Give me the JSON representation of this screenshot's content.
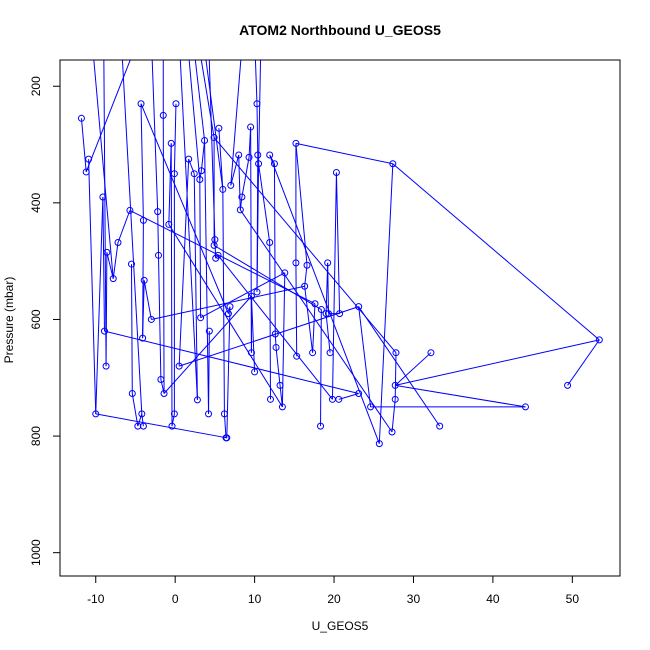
{
  "chart_data": {
    "type": "line",
    "title": "ATOM2 Northbound U_GEOS5",
    "xlabel": "U_GEOS5",
    "ylabel": "Pressure (mbar)",
    "xlim": [
      -14.5,
      56
    ],
    "ylim": [
      1040,
      155
    ],
    "x_ticks": [
      -10,
      0,
      10,
      20,
      30,
      40,
      50
    ],
    "y_ticks": [
      200,
      400,
      600,
      800,
      1000
    ],
    "grid": false,
    "color": "#0000ff",
    "points": [
      {
        "x": 53.4,
        "p": 635
      },
      {
        "x": 49.4,
        "p": 713
      },
      {
        "x": 27.7,
        "p": 713
      },
      {
        "x": 44.1,
        "p": 750
      },
      {
        "x": 27.4,
        "p": 333
      },
      {
        "x": 25.7,
        "p": 813
      },
      {
        "x": 33.3,
        "p": 783
      },
      {
        "x": 32.2,
        "p": 657
      },
      {
        "x": 23.1,
        "p": 578
      },
      {
        "x": 27.8,
        "p": 657
      },
      {
        "x": 27.7,
        "p": 737
      },
      {
        "x": 27.3,
        "p": 793
      },
      {
        "x": 24.6,
        "p": 750
      },
      {
        "x": 23.1,
        "p": 727
      },
      {
        "x": 20.6,
        "p": 737
      },
      {
        "x": 19.8,
        "p": 737
      },
      {
        "x": 20.3,
        "p": 348
      },
      {
        "x": 20.7,
        "p": 590
      },
      {
        "x": 19.3,
        "p": 590
      },
      {
        "x": 19.2,
        "p": 503
      },
      {
        "x": 19.0,
        "p": 590
      },
      {
        "x": 19.5,
        "p": 657
      },
      {
        "x": 18.4,
        "p": 583
      },
      {
        "x": 18.3,
        "p": 783
      },
      {
        "x": 17.6,
        "p": 573
      },
      {
        "x": 17.3,
        "p": 657
      },
      {
        "x": 16.3,
        "p": 543
      },
      {
        "x": 16.6,
        "p": 507
      },
      {
        "x": 15.2,
        "p": 298
      },
      {
        "x": 15.2,
        "p": 503
      },
      {
        "x": 15.3,
        "p": 663
      },
      {
        "x": 13.8,
        "p": 520
      },
      {
        "x": 13.5,
        "p": 750
      },
      {
        "x": 13.2,
        "p": 713
      },
      {
        "x": 12.7,
        "p": 648
      },
      {
        "x": 12.6,
        "p": 625
      },
      {
        "x": 12.5,
        "p": 333
      },
      {
        "x": 11.9,
        "p": 318
      },
      {
        "x": 12.0,
        "p": 737
      },
      {
        "x": 11.9,
        "p": 468
      },
      {
        "x": 10.5,
        "p": 333
      },
      {
        "x": 10.3,
        "p": 553
      },
      {
        "x": 10.4,
        "p": 318
      },
      {
        "x": 10.3,
        "p": 230
      },
      {
        "x": 10.0,
        "p": 690
      },
      {
        "x": 9.6,
        "p": 560
      },
      {
        "x": 9.6,
        "p": 657
      },
      {
        "x": 9.5,
        "p": 270
      },
      {
        "x": 9.3,
        "p": 322
      },
      {
        "x": 8.4,
        "p": 390
      },
      {
        "x": 8.2,
        "p": 412
      },
      {
        "x": 8.0,
        "p": 318
      },
      {
        "x": 7.0,
        "p": 370
      },
      {
        "x": 6.7,
        "p": 590
      },
      {
        "x": 6.9,
        "p": 578
      },
      {
        "x": 6.5,
        "p": 803
      },
      {
        "x": 6.4,
        "p": 803
      },
      {
        "x": 6.2,
        "p": 762
      },
      {
        "x": 6.0,
        "p": 377
      },
      {
        "x": 5.5,
        "p": 272
      },
      {
        "x": 5.4,
        "p": 490
      },
      {
        "x": 5.1,
        "p": 495
      },
      {
        "x": 5.0,
        "p": 463
      },
      {
        "x": 4.9,
        "p": 473
      },
      {
        "x": 4.9,
        "p": 288
      },
      {
        "x": 4.3,
        "p": 620
      },
      {
        "x": 4.2,
        "p": 762
      },
      {
        "x": 3.7,
        "p": 293
      },
      {
        "x": 3.3,
        "p": 345
      },
      {
        "x": 3.1,
        "p": 360
      },
      {
        "x": 3.2,
        "p": 597
      },
      {
        "x": 2.8,
        "p": 738
      },
      {
        "x": 2.4,
        "p": 350
      },
      {
        "x": 1.7,
        "p": 325
      },
      {
        "x": 0.5,
        "p": 680
      },
      {
        "x": 0.1,
        "p": 230
      },
      {
        "x": -0.1,
        "p": 350
      },
      {
        "x": -0.1,
        "p": 762
      },
      {
        "x": -0.4,
        "p": 783
      },
      {
        "x": -0.5,
        "p": 298
      },
      {
        "x": -0.8,
        "p": 437
      },
      {
        "x": -1.5,
        "p": 250
      },
      {
        "x": -1.4,
        "p": 727
      },
      {
        "x": -1.8,
        "p": 703
      },
      {
        "x": -2.1,
        "p": 490
      },
      {
        "x": -2.2,
        "p": 415
      },
      {
        "x": -3.0,
        "p": 600
      },
      {
        "x": -3.9,
        "p": 533
      },
      {
        "x": -4.1,
        "p": 632
      },
      {
        "x": -4.0,
        "p": 430
      },
      {
        "x": -4.3,
        "p": 230
      },
      {
        "x": -4.0,
        "p": 783
      },
      {
        "x": -4.2,
        "p": 762
      },
      {
        "x": -4.7,
        "p": 783
      },
      {
        "x": -5.4,
        "p": 727
      },
      {
        "x": -5.5,
        "p": 505
      },
      {
        "x": -5.7,
        "p": 413
      },
      {
        "x": -7.2,
        "p": 468
      },
      {
        "x": -7.8,
        "p": 530
      },
      {
        "x": -8.6,
        "p": 485
      },
      {
        "x": -8.7,
        "p": 680
      },
      {
        "x": -8.9,
        "p": 620
      },
      {
        "x": -9.1,
        "p": 390
      },
      {
        "x": -10.0,
        "p": 762
      },
      {
        "x": -10.9,
        "p": 325
      },
      {
        "x": -11.2,
        "p": 347
      },
      {
        "x": -11.8,
        "p": 255
      }
    ],
    "segments": [
      [
        1,
        0
      ],
      [
        0,
        2
      ],
      [
        4,
        0
      ],
      [
        3,
        2
      ],
      [
        4,
        5
      ],
      [
        11,
        10
      ],
      [
        12,
        3
      ],
      [
        8,
        12
      ],
      [
        8,
        6
      ],
      [
        7,
        2
      ],
      [
        10,
        9
      ],
      [
        13,
        14
      ],
      [
        15,
        16
      ],
      [
        16,
        17
      ],
      [
        17,
        18
      ],
      [
        18,
        19
      ],
      [
        19,
        20
      ],
      [
        20,
        21
      ],
      [
        22,
        23
      ],
      [
        24,
        25
      ],
      [
        25,
        26
      ],
      [
        26,
        27
      ],
      [
        27,
        28
      ],
      [
        28,
        29
      ],
      [
        29,
        30
      ],
      [
        31,
        32
      ],
      [
        32,
        33
      ],
      [
        33,
        34
      ],
      [
        34,
        35
      ],
      [
        35,
        36
      ],
      [
        36,
        37
      ],
      [
        38,
        39
      ],
      [
        39,
        40
      ],
      [
        40,
        41
      ],
      [
        41,
        42
      ],
      [
        42,
        43
      ],
      [
        44,
        45
      ],
      [
        45,
        46
      ],
      [
        46,
        47
      ],
      [
        47,
        48
      ],
      [
        48,
        49
      ],
      [
        49,
        50
      ],
      [
        50,
        51
      ],
      [
        51,
        52
      ],
      [
        53,
        54
      ],
      [
        54,
        55
      ],
      [
        55,
        56
      ],
      [
        56,
        57
      ],
      [
        57,
        58
      ],
      [
        58,
        59
      ],
      [
        60,
        61
      ],
      [
        61,
        62
      ],
      [
        62,
        63
      ],
      [
        63,
        64
      ],
      [
        65,
        66
      ],
      [
        66,
        67
      ],
      [
        67,
        68
      ],
      [
        68,
        69
      ],
      [
        69,
        70
      ],
      [
        71,
        72
      ],
      [
        72,
        73
      ],
      [
        73,
        74
      ],
      [
        75,
        76
      ],
      [
        76,
        77
      ],
      [
        77,
        78
      ],
      [
        78,
        79
      ],
      [
        79,
        80
      ],
      [
        81,
        82
      ],
      [
        82,
        83
      ],
      [
        83,
        84
      ],
      [
        84,
        85
      ],
      [
        86,
        87
      ],
      [
        87,
        88
      ],
      [
        88,
        89
      ],
      [
        89,
        90
      ],
      [
        91,
        92
      ],
      [
        92,
        93
      ],
      [
        93,
        94
      ],
      [
        94,
        95
      ],
      [
        96,
        97
      ],
      [
        97,
        98
      ],
      [
        98,
        99
      ],
      [
        99,
        100
      ],
      [
        101,
        102
      ],
      [
        102,
        103
      ],
      [
        103,
        104
      ],
      [
        105,
        106
      ],
      [
        106,
        107
      ],
      [
        4,
        28
      ],
      [
        37,
        5
      ],
      [
        50,
        11
      ],
      [
        64,
        9
      ],
      [
        63,
        22
      ],
      [
        70,
        31
      ],
      [
        74,
        8
      ],
      [
        60,
        15
      ],
      [
        55,
        103
      ],
      [
        86,
        26
      ],
      [
        96,
        24
      ],
      [
        101,
        13
      ],
      [
        80,
        32
      ],
      [
        82,
        45
      ],
      [
        90,
        53
      ]
    ],
    "series_tops": [
      {
        "x": -10.5,
        "p": 155
      },
      {
        "x": -9.0,
        "p": 155
      },
      {
        "x": -6.8,
        "p": 155
      },
      {
        "x": -4.5,
        "p": 155
      },
      {
        "x": -3.0,
        "p": 155
      },
      {
        "x": -1.5,
        "p": 155
      },
      {
        "x": 0.5,
        "p": 155
      },
      {
        "x": 1.5,
        "p": 155
      },
      {
        "x": 2.2,
        "p": 155
      },
      {
        "x": 2.8,
        "p": 155
      },
      {
        "x": 3.5,
        "p": 155
      },
      {
        "x": 4.2,
        "p": 155
      },
      {
        "x": 8.5,
        "p": 155
      },
      {
        "x": 10.0,
        "p": 155
      },
      {
        "x": 10.8,
        "p": 155
      }
    ],
    "top_links": [
      [
        0,
        98
      ],
      [
        1,
        100
      ],
      [
        2,
        92
      ],
      [
        3,
        105
      ],
      [
        4,
        85
      ],
      [
        5,
        81
      ],
      [
        6,
        71
      ],
      [
        7,
        69
      ],
      [
        8,
        67
      ],
      [
        9,
        64
      ],
      [
        10,
        58
      ],
      [
        11,
        62
      ],
      [
        12,
        52
      ],
      [
        13,
        43
      ],
      [
        14,
        40
      ]
    ]
  }
}
